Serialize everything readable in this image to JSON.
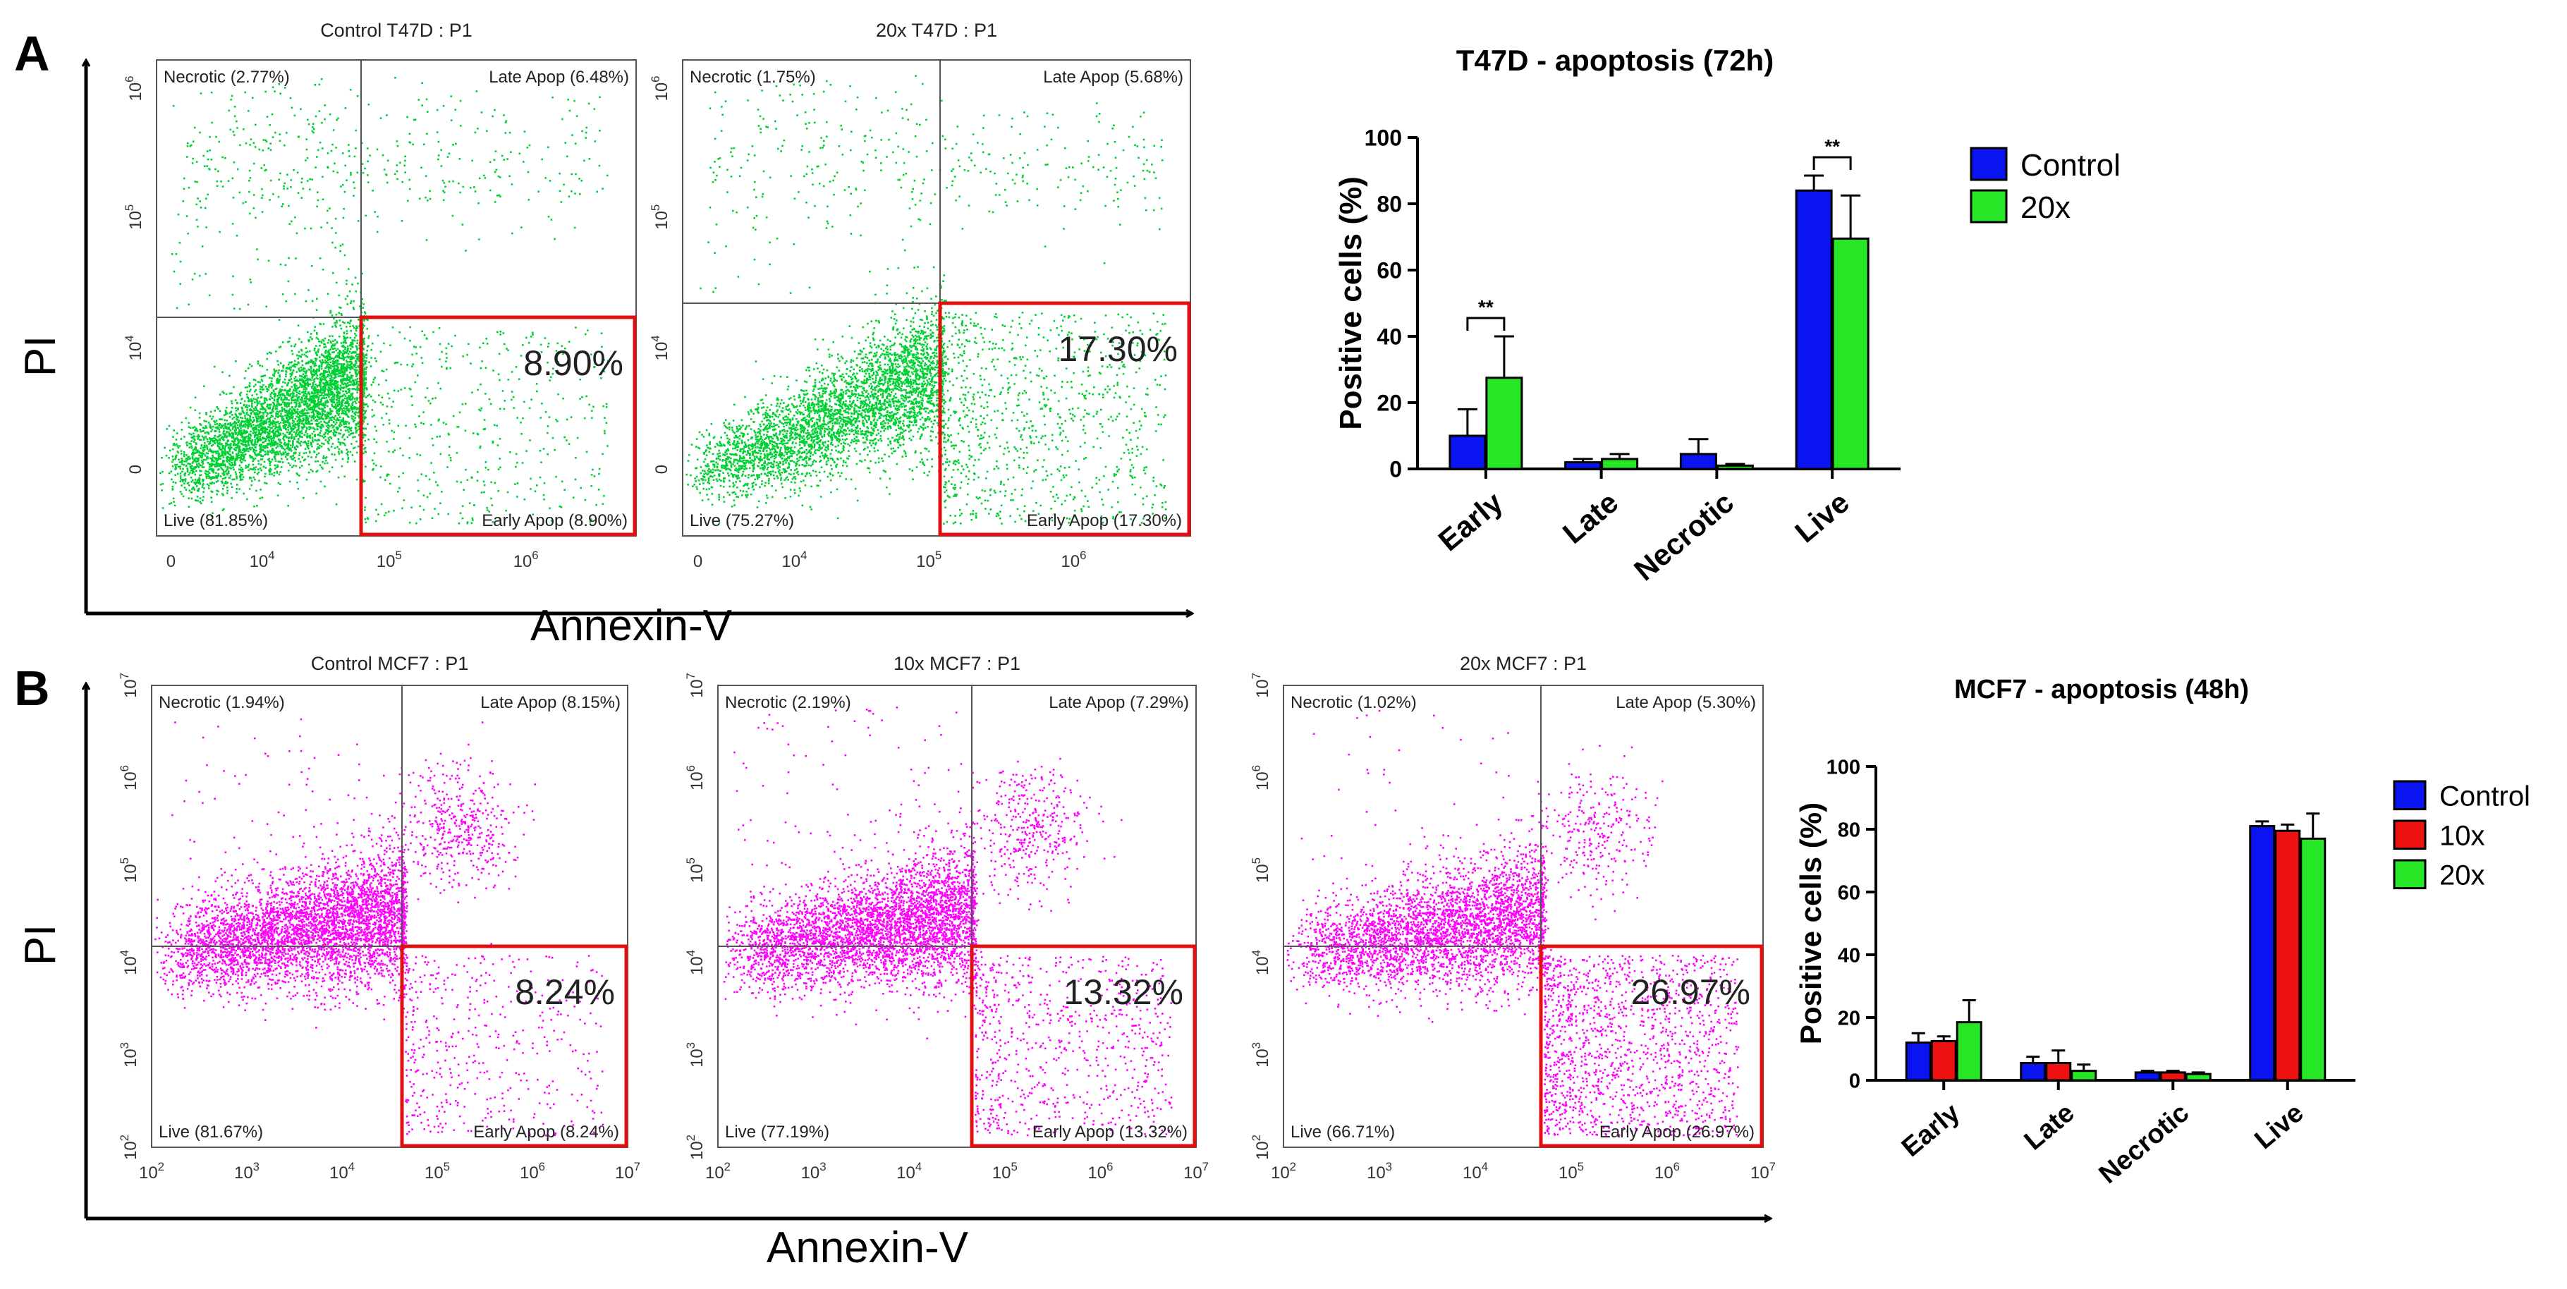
{
  "panels": {
    "a": {
      "letter": "A",
      "axis_x_label": "Annexin-V",
      "axis_y_label": "PI",
      "flow_plots": [
        {
          "title": "Control T47D : P1",
          "dot_color": "#00d032",
          "x_axis_style": "lin",
          "quadrants": {
            "necrotic": "Necrotic  (2.77%)",
            "late": "Late Apop  (6.48%)",
            "live": "Live  (81.85%)",
            "early": "Early Apop  (8.90%)"
          },
          "highlight": "8.90%",
          "early_fraction": 0.089,
          "late_fraction": 0.0648,
          "necrotic_fraction": 0.0277,
          "x_ticks": [
            "0",
            "10^4",
            "10^5",
            "10^6"
          ],
          "y_ticks": [
            "0",
            "10^4",
            "10^5",
            "10^6"
          ]
        },
        {
          "title": "20x T47D : P1",
          "dot_color": "#00d032",
          "x_axis_style": "lin",
          "quadrants": {
            "necrotic": "Necrotic  (1.75%)",
            "late": "Late Apop  (5.68%)",
            "live": "Live  (75.27%)",
            "early": "Early Apop  (17.30%)"
          },
          "highlight": "17.30%",
          "early_fraction": 0.173,
          "late_fraction": 0.0568,
          "necrotic_fraction": 0.0175,
          "x_ticks": [
            "0",
            "10^4",
            "10^5",
            "10^6"
          ],
          "y_ticks": [
            "0",
            "10^4",
            "10^5",
            "10^6"
          ]
        }
      ]
    },
    "b": {
      "letter": "B",
      "axis_x_label": "Annexin-V",
      "axis_y_label": "PI",
      "flow_plots": [
        {
          "title": "Control MCF7 : P1",
          "dot_color": "#ff00ff",
          "x_axis_style": "log",
          "quadrants": {
            "necrotic": "Necrotic  (1.94%)",
            "late": "Late Apop  (8.15%)",
            "live": "Live  (81.67%)",
            "early": "Early Apop  (8.24%)"
          },
          "highlight": "8.24%",
          "early_fraction": 0.0824,
          "late_fraction": 0.0815,
          "necrotic_fraction": 0.0194,
          "x_ticks": [
            "10^2",
            "10^3",
            "10^4",
            "10^5",
            "10^6",
            "10^7"
          ],
          "y_ticks": [
            "10^2",
            "10^3",
            "10^4",
            "10^5",
            "10^6",
            "10^7"
          ]
        },
        {
          "title": "10x MCF7 : P1",
          "dot_color": "#ff00ff",
          "x_axis_style": "log",
          "quadrants": {
            "necrotic": "Necrotic  (2.19%)",
            "late": "Late Apop  (7.29%)",
            "live": "Live  (77.19%)",
            "early": "Early Apop  (13.32%)"
          },
          "highlight": "13.32%",
          "early_fraction": 0.1332,
          "late_fraction": 0.0729,
          "necrotic_fraction": 0.0219,
          "x_ticks": [
            "10^2",
            "10^3",
            "10^4",
            "10^5",
            "10^6",
            "10^7"
          ],
          "y_ticks": [
            "10^2",
            "10^3",
            "10^4",
            "10^5",
            "10^6",
            "10^7"
          ]
        },
        {
          "title": "20x MCF7 : P1",
          "dot_color": "#ff00ff",
          "x_axis_style": "log",
          "quadrants": {
            "necrotic": "Necrotic  (1.02%)",
            "late": "Late Apop  (5.30%)",
            "live": "Live  (66.71%)",
            "early": "Early Apop  (26.97%)"
          },
          "highlight": "26.97%",
          "early_fraction": 0.2697,
          "late_fraction": 0.053,
          "necrotic_fraction": 0.0102,
          "x_ticks": [
            "10^2",
            "10^3",
            "10^4",
            "10^5",
            "10^6",
            "10^7"
          ],
          "y_ticks": [
            "10^2",
            "10^3",
            "10^4",
            "10^5",
            "10^6",
            "10^7"
          ]
        }
      ]
    }
  },
  "chart_data": [
    {
      "type": "bar",
      "title": "T47D - apoptosis (72h)",
      "xlabel": "",
      "ylabel": "Positive cells (%)",
      "ylim": [
        0,
        100
      ],
      "yticks": [
        0,
        20,
        40,
        60,
        80,
        100
      ],
      "categories": [
        "Early",
        "Late",
        "Necrotic",
        "Live"
      ],
      "series": [
        {
          "name": "Control",
          "color": "#0a14f0",
          "values": [
            10,
            2,
            4.5,
            84
          ],
          "errors": [
            8,
            1,
            4.5,
            4.5
          ]
        },
        {
          "name": "20x",
          "color": "#26e626",
          "values": [
            27.5,
            3,
            1,
            69.5
          ],
          "errors": [
            12.5,
            1.5,
            0.5,
            13
          ]
        }
      ],
      "significance": [
        {
          "category": "Early",
          "label": "**"
        },
        {
          "category": "Live",
          "label": "**"
        }
      ],
      "legend_position": "top-right"
    },
    {
      "type": "bar",
      "title": "MCF7 - apoptosis (48h)",
      "xlabel": "",
      "ylabel": "Positive cells (%)",
      "ylim": [
        0,
        100
      ],
      "yticks": [
        0,
        20,
        40,
        60,
        80,
        100
      ],
      "categories": [
        "Early",
        "Late",
        "Necrotic",
        "Live"
      ],
      "series": [
        {
          "name": "Control",
          "color": "#0a14f0",
          "values": [
            12,
            5.5,
            2.5,
            81
          ],
          "errors": [
            3,
            2,
            0.5,
            1.5
          ]
        },
        {
          "name": "10x",
          "color": "#ee1111",
          "values": [
            12.5,
            5.5,
            2.5,
            79.5
          ],
          "errors": [
            1.5,
            4,
            0.5,
            2
          ]
        },
        {
          "name": "20x",
          "color": "#26e626",
          "values": [
            18.5,
            3,
            2,
            77
          ],
          "errors": [
            7,
            2,
            0.5,
            8
          ]
        }
      ],
      "significance": [],
      "legend_position": "top-right"
    }
  ]
}
